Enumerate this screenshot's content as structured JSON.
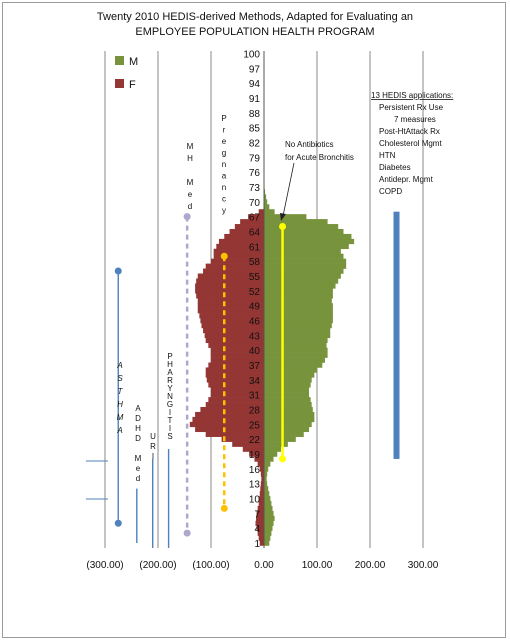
{
  "chart_data": {
    "type": "bar",
    "orientation": "horizontal",
    "title": [
      "Twenty 2010 HEDIS-derived Methods, Adapted for Evaluating an",
      "EMPLOYEE POPULATION HEALTH PROGRAM"
    ],
    "xlim": [
      -300,
      300
    ],
    "x_ticks": [
      "(300.00)",
      "(200.00)",
      "(100.00)",
      "0.00",
      "100.00",
      "200.00",
      "300.00"
    ],
    "x_tick_values": [
      -300,
      -200,
      -100,
      0,
      100,
      200,
      300
    ],
    "y_tick_labels": [
      "1",
      "4",
      "7",
      "10",
      "13",
      "16",
      "19",
      "22",
      "25",
      "28",
      "31",
      "34",
      "37",
      "40",
      "43",
      "46",
      "49",
      "52",
      "55",
      "58",
      "61",
      "64",
      "67",
      "70",
      "73",
      "76",
      "79",
      "82",
      "85",
      "88",
      "91",
      "94",
      "97",
      "100"
    ],
    "grid": true,
    "legend_position": "top-left",
    "series": [
      {
        "name": "M",
        "color": "#77933c",
        "ages": [
          1,
          2,
          3,
          4,
          5,
          6,
          7,
          8,
          9,
          10,
          11,
          12,
          13,
          14,
          15,
          16,
          17,
          18,
          19,
          20,
          21,
          22,
          23,
          24,
          25,
          26,
          27,
          28,
          29,
          30,
          31,
          32,
          33,
          34,
          35,
          36,
          37,
          38,
          39,
          40,
          41,
          42,
          43,
          44,
          45,
          46,
          47,
          48,
          49,
          50,
          51,
          52,
          53,
          54,
          55,
          56,
          57,
          58,
          59,
          60,
          61,
          62,
          63,
          64,
          65,
          66,
          67,
          68,
          69,
          70,
          71,
          72,
          73
        ],
        "values": [
          10,
          12,
          14,
          16,
          18,
          20,
          18,
          16,
          14,
          12,
          10,
          8,
          6,
          5,
          6,
          8,
          12,
          18,
          25,
          32,
          45,
          60,
          75,
          85,
          90,
          95,
          95,
          92,
          90,
          88,
          85,
          85,
          88,
          90,
          95,
          100,
          110,
          115,
          120,
          120,
          118,
          120,
          125,
          125,
          128,
          130,
          130,
          130,
          130,
          128,
          130,
          130,
          135,
          140,
          145,
          150,
          155,
          155,
          150,
          145,
          160,
          170,
          165,
          150,
          140,
          120,
          80,
          20,
          10,
          6,
          4,
          2,
          1
        ]
      },
      {
        "name": "F",
        "color": "#943634",
        "ages": [
          1,
          2,
          3,
          4,
          5,
          6,
          7,
          8,
          9,
          10,
          11,
          12,
          13,
          14,
          15,
          16,
          17,
          18,
          19,
          20,
          21,
          22,
          23,
          24,
          25,
          26,
          27,
          28,
          29,
          30,
          31,
          32,
          33,
          34,
          35,
          36,
          37,
          38,
          39,
          40,
          41,
          42,
          43,
          44,
          45,
          46,
          47,
          48,
          49,
          50,
          51,
          52,
          53,
          54,
          55,
          56,
          57,
          58,
          59,
          60,
          61,
          62,
          63,
          64,
          65,
          66,
          67,
          68
        ],
        "values": [
          -8,
          -10,
          -12,
          -14,
          -16,
          -15,
          -14,
          -12,
          -10,
          -9,
          -8,
          -7,
          -6,
          -5,
          -6,
          -8,
          -12,
          -18,
          -28,
          -40,
          -60,
          -80,
          -110,
          -130,
          -140,
          -135,
          -130,
          -120,
          -110,
          -105,
          -100,
          -100,
          -105,
          -108,
          -110,
          -110,
          -105,
          -100,
          -100,
          -100,
          -105,
          -110,
          -112,
          -115,
          -118,
          -120,
          -122,
          -125,
          -125,
          -125,
          -128,
          -130,
          -130,
          -128,
          -125,
          -115,
          -110,
          -100,
          -95,
          -95,
          -90,
          -85,
          -75,
          -65,
          -55,
          -45,
          -30,
          -10
        ]
      }
    ],
    "method_lines": [
      {
        "label": "ASTHMA",
        "x": -275,
        "age_low": 5,
        "age_high": 56,
        "color": "#4f81bd",
        "style": "solid",
        "end_dots": true
      },
      {
        "label": "ADHD Med",
        "x": -240,
        "age_low": 1,
        "age_high": 12,
        "color": "#4f81bd",
        "style": "solid",
        "end_dots": false
      },
      {
        "label": "URI",
        "x": -210,
        "age_low": 0,
        "age_high": 18,
        "color": "#4f81bd",
        "style": "solid",
        "end_dots": false
      },
      {
        "label": "PHARYNGITIS",
        "x": -180,
        "age_low": 0,
        "age_high": 20,
        "color": "#4f81bd",
        "style": "solid",
        "end_dots": false
      },
      {
        "label": "MH Med",
        "x": -145,
        "age_low": 3,
        "age_high": 67,
        "color": "#b0a7cf",
        "style": "dashed",
        "end_dots": true
      },
      {
        "label": "Pregnancy",
        "x": -75,
        "age_low": 8,
        "age_high": 59,
        "color": "#ffc000",
        "style": "dashed",
        "end_dots": true
      },
      {
        "label": "No Antibiotics for Acute Bronchitis",
        "x": 35,
        "age_low": 18,
        "age_high": 65,
        "color": "#ffff00",
        "style": "solid",
        "end_dots": true
      },
      {
        "label": "13 HEDIS applications",
        "x": 250,
        "age_low": 18,
        "age_high": 68,
        "color": "#4f81bd",
        "style": "bar",
        "end_dots": false
      }
    ],
    "side_labels": {
      "asthma": [
        "A",
        "S",
        "T",
        "H",
        "M",
        "A"
      ],
      "adhd": [
        "A",
        "D",
        "H",
        "D",
        "",
        "M",
        "e",
        "d"
      ],
      "uri": [
        "U",
        "R",
        "I"
      ],
      "pharyngitis": [
        "P",
        "H",
        "A",
        "R",
        "Y",
        "N",
        "G",
        "I",
        "T",
        "I",
        "S"
      ],
      "mh": [
        "M",
        "H",
        "",
        "M",
        "e",
        "d"
      ],
      "pregnancy": [
        "P",
        "r",
        "e",
        "g",
        "n",
        "a",
        "n",
        "c",
        "y"
      ]
    },
    "annotations": {
      "bronchitis": [
        "No Antibiotics",
        "for Acute Bronchitis"
      ],
      "hedis_box": [
        "13 HEDIS applications:",
        "Persistent Rx Use",
        "7 measures",
        "Post-HtAttack Rx",
        "Cholesterol Mgmt",
        "HTN",
        "Diabetes",
        "Antidepr. Mgmt",
        "COPD"
      ]
    }
  }
}
